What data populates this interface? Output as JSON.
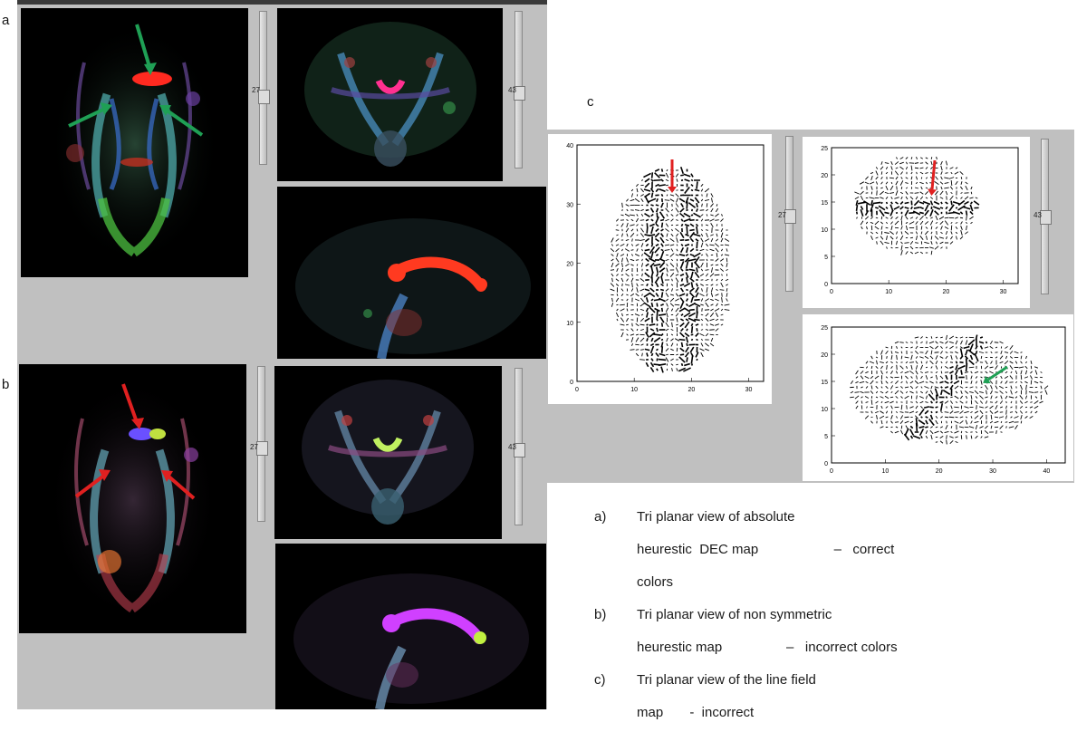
{
  "panel_labels": {
    "a": "a",
    "b": "b",
    "c": "c"
  },
  "sliders": {
    "axial_value": "27",
    "coronal_value": "43"
  },
  "plots": {
    "axial": {
      "yticks": [
        "0",
        "10",
        "20",
        "30",
        "40"
      ],
      "xticks": [
        "0",
        "10",
        "20",
        "30"
      ]
    },
    "coronal": {
      "yticks": [
        "0",
        "5",
        "10",
        "15",
        "20",
        "25"
      ],
      "xticks": [
        "0",
        "10",
        "20",
        "30"
      ]
    },
    "sagittal": {
      "yticks": [
        "0",
        "5",
        "10",
        "15",
        "20",
        "25"
      ],
      "xticks": [
        "0",
        "10",
        "20",
        "30",
        "40"
      ]
    }
  },
  "captions": {
    "a_marker": "a)",
    "a_line1": "Tri planar view of absolute",
    "a_line2": "heurestic  DEC map                    –   correct",
    "a_line3": "colors",
    "b_marker": "b)",
    "b_line1": "Tri planar view of non symmetric",
    "b_line2": "heurestic map                 –   incorrect colors",
    "c_marker": "c)",
    "c_line1": "Tri planar view of the line field",
    "c_line2": "map       -  incorrect"
  },
  "colors": {
    "panel_grey": "#c0c0c0",
    "arrow_green": "#1fa055",
    "arrow_red": "#e02020",
    "corpus_red": "#ff3020",
    "corpus_magenta": "#d040ff"
  }
}
